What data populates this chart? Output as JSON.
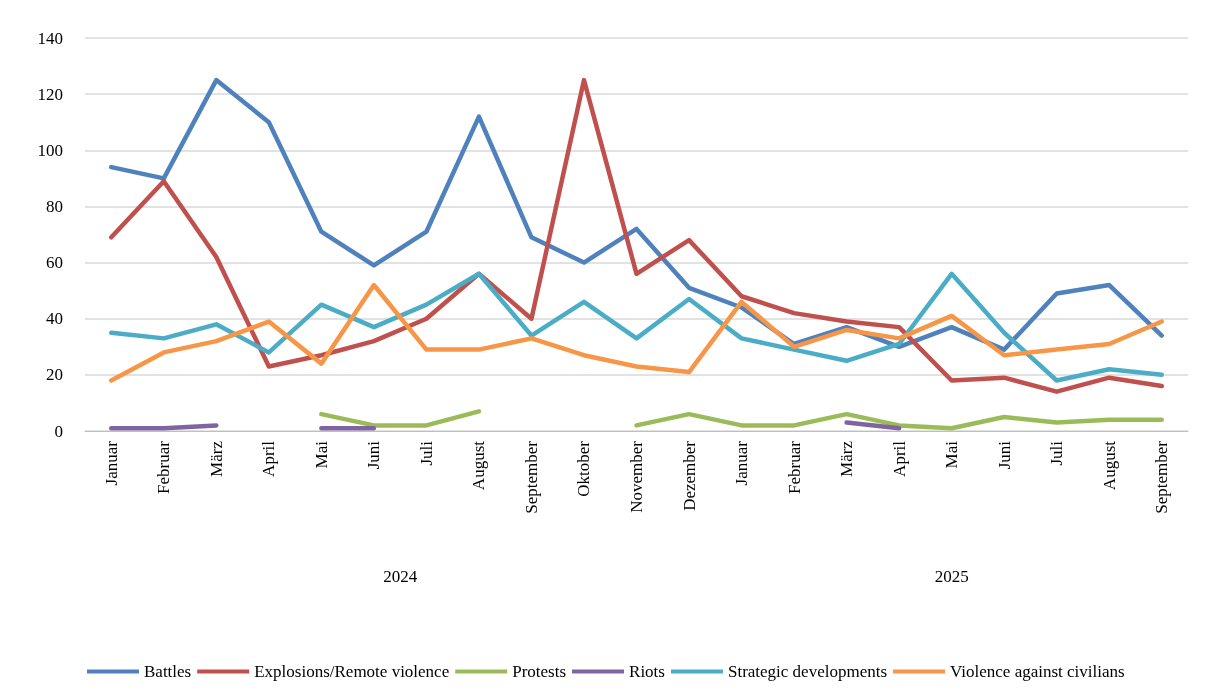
{
  "chart_data": {
    "type": "line",
    "categories": [
      "Januar",
      "Februar",
      "März",
      "April",
      "Mai",
      "Juni",
      "Juli",
      "August",
      "September",
      "Oktober",
      "November",
      "Dezember",
      "Januar",
      "Februar",
      "März",
      "April",
      "Mai",
      "Juni",
      "Juli",
      "August",
      "September"
    ],
    "series": [
      {
        "name": "Battles",
        "color": "#4f81bd",
        "values": [
          94,
          90,
          125,
          110,
          71,
          59,
          71,
          112,
          69,
          60,
          72,
          51,
          44,
          31,
          37,
          30,
          37,
          29,
          49,
          52,
          34
        ]
      },
      {
        "name": "Explosions/Remote violence",
        "color": "#c0504d",
        "values": [
          69,
          89,
          62,
          23,
          27,
          32,
          40,
          56,
          40,
          125,
          56,
          68,
          48,
          42,
          39,
          37,
          18,
          19,
          14,
          19,
          16
        ]
      },
      {
        "name": "Protests",
        "color": "#9bbb59",
        "values": [
          null,
          null,
          null,
          null,
          6,
          2,
          2,
          7,
          null,
          null,
          2,
          6,
          2,
          2,
          6,
          2,
          1,
          5,
          3,
          4,
          4
        ]
      },
      {
        "name": "Riots",
        "color": "#8064a2",
        "values": [
          1,
          1,
          2,
          null,
          1,
          1,
          null,
          null,
          null,
          null,
          null,
          null,
          null,
          null,
          3,
          1,
          null,
          null,
          null,
          null,
          null
        ]
      },
      {
        "name": "Strategic developments",
        "color": "#4bacc6",
        "values": [
          35,
          33,
          38,
          28,
          45,
          37,
          45,
          56,
          34,
          46,
          33,
          47,
          33,
          29,
          25,
          31,
          56,
          35,
          18,
          22,
          20
        ]
      },
      {
        "name": "Violence against civilians",
        "color": "#f79646",
        "values": [
          18,
          28,
          32,
          39,
          24,
          52,
          29,
          29,
          33,
          27,
          23,
          21,
          46,
          30,
          36,
          33,
          41,
          27,
          29,
          31,
          39
        ]
      }
    ],
    "annotations": [
      "2024",
      "2025"
    ],
    "ylim": [
      0,
      140
    ],
    "yticks": [
      0,
      20,
      40,
      60,
      80,
      100,
      120,
      140
    ],
    "grid": "y",
    "legend": "bottom",
    "marker": "none",
    "line_style": "solid"
  }
}
